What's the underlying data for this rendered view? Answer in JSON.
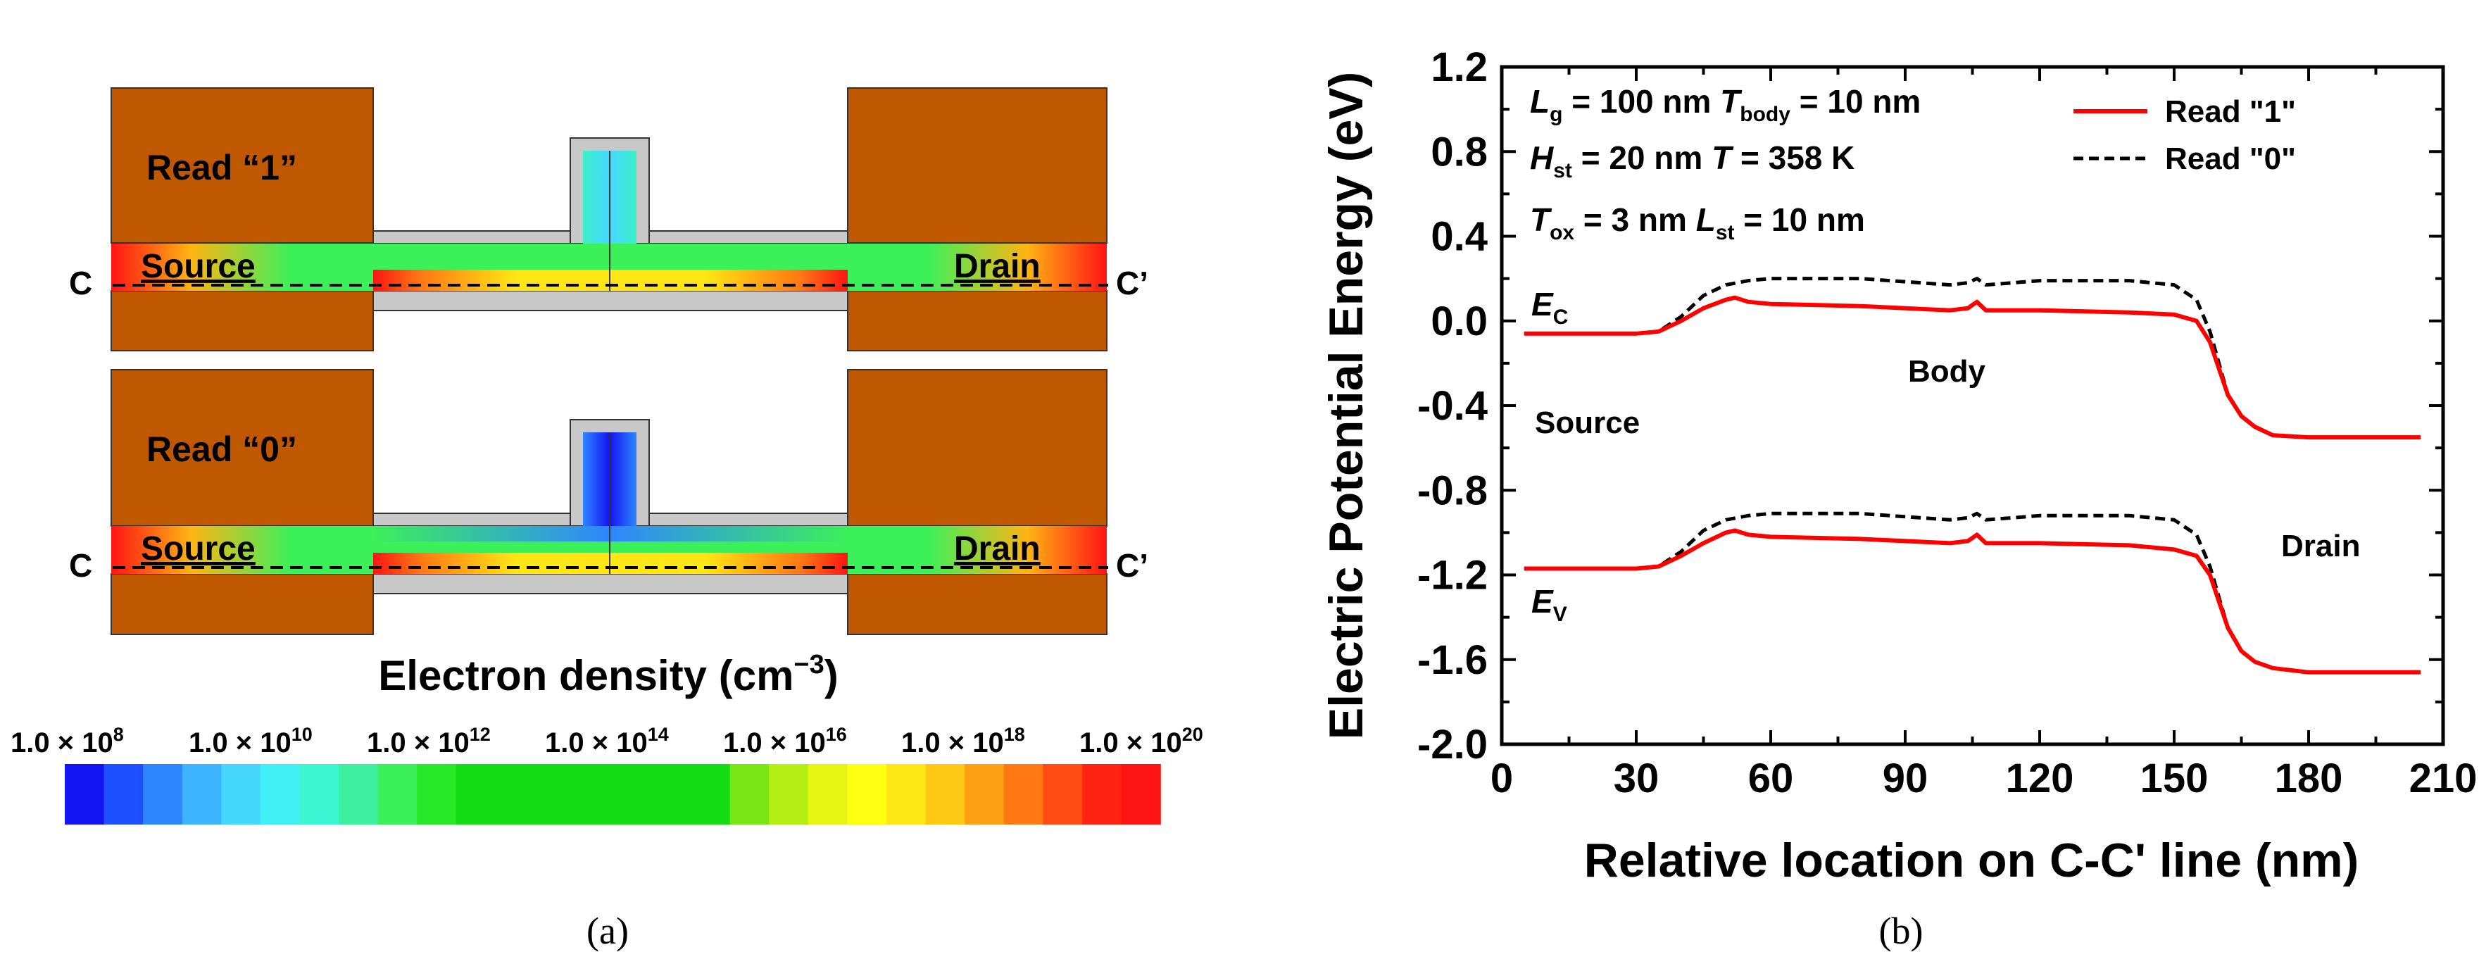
{
  "panel_a": {
    "top": {
      "read_label": "Read “1”",
      "source": "Source",
      "drain": "Drain",
      "c_left": "C",
      "c_right": "C’"
    },
    "bottom": {
      "read_label": "Read “0”",
      "source": "Source",
      "drain": "Drain",
      "c_left": "C",
      "c_right": "C’"
    },
    "colorbar_title": "Electron density (cm",
    "colorbar_title_exp": "−3",
    "colorbar_title_close": ")",
    "colorbar_ticks": [
      {
        "mant": "1.0 × 10",
        "exp": "8"
      },
      {
        "mant": "1.0 × 10",
        "exp": "10"
      },
      {
        "mant": "1.0 × 10",
        "exp": "12"
      },
      {
        "mant": "1.0 × 10",
        "exp": "14"
      },
      {
        "mant": "1.0 × 10",
        "exp": "16"
      },
      {
        "mant": "1.0 × 10",
        "exp": "18"
      },
      {
        "mant": "1.0 × 10",
        "exp": "20"
      }
    ],
    "colorbar_colors": [
      "#1414f0",
      "#1e50ff",
      "#2e86ff",
      "#3cb4ff",
      "#46d7ff",
      "#41f0f5",
      "#3cf5d2",
      "#3cf0a0",
      "#3cf05a",
      "#28e628",
      "#14dc14",
      "#14dc14",
      "#14dc14",
      "#14dc14",
      "#14dc14",
      "#14dc14",
      "#14dc14",
      "#78e614",
      "#b4f014",
      "#e6f514",
      "#ffff14",
      "#ffe614",
      "#ffc814",
      "#ffa014",
      "#ff7814",
      "#ff4b14",
      "#ff2314",
      "#ff1414"
    ],
    "caption": "(a)"
  },
  "panel_b": {
    "caption": "(b)",
    "params": [
      {
        "main": "L",
        "sub": "g",
        "val": " = 100 nm ",
        "main2": "T",
        "sub2": "body",
        "val2": " = 10 nm"
      },
      {
        "main": "H",
        "sub": "st",
        "val": " = 20 nm ",
        "main2": "T",
        "sub2": "",
        "val2": "   = 358 K"
      },
      {
        "main": "T",
        "sub": "ox",
        "val": " = 3 nm ",
        "main2": "L",
        "sub2": "st",
        "val2": " = 10 nm"
      }
    ],
    "region_labels": {
      "source": "Source",
      "body": "Body",
      "drain": "Drain"
    },
    "band_labels": {
      "ec_main": "E",
      "ec_sub": "C",
      "ev_main": "E",
      "ev_sub": "V"
    }
  },
  "chart_data": {
    "type": "line",
    "title": "",
    "xlabel": "Relative location on C-C' line (nm)",
    "ylabel": "Electric Potential Energy (eV)",
    "xlim": [
      0,
      210
    ],
    "ylim": [
      -2.0,
      1.2
    ],
    "xticks": [
      0,
      30,
      60,
      90,
      120,
      150,
      180,
      210
    ],
    "yticks": [
      -2.0,
      -1.6,
      -1.2,
      -0.8,
      -0.4,
      0.0,
      0.4,
      0.8,
      1.2
    ],
    "xtick_labels": [
      "0",
      "30",
      "60",
      "90",
      "120",
      "150",
      "180",
      "210"
    ],
    "ytick_labels": [
      "-2.0",
      "-1.6",
      "-1.2",
      "-0.8",
      "-0.4",
      "0.0",
      "0.4",
      "0.8",
      "1.2"
    ],
    "legend": "top-right",
    "colors": {
      "read1": "#ff0000",
      "read0": "#000000"
    },
    "series": [
      {
        "name": "Read \"1\"",
        "band": "Ec",
        "style": "solid",
        "x": [
          5,
          30,
          35,
          40,
          45,
          50,
          52,
          55,
          60,
          80,
          100,
          104,
          106,
          108,
          120,
          140,
          150,
          155,
          158,
          162,
          165,
          168,
          172,
          180,
          205
        ],
        "y": [
          -0.06,
          -0.06,
          -0.05,
          0.0,
          0.06,
          0.1,
          0.11,
          0.09,
          0.08,
          0.07,
          0.05,
          0.06,
          0.09,
          0.05,
          0.05,
          0.04,
          0.03,
          0.0,
          -0.1,
          -0.35,
          -0.45,
          -0.5,
          -0.54,
          -0.55,
          -0.55
        ]
      },
      {
        "name": "Read \"0\"",
        "band": "Ec",
        "style": "dashed",
        "x": [
          5,
          30,
          35,
          40,
          45,
          50,
          55,
          60,
          80,
          100,
          104,
          106,
          108,
          120,
          140,
          150,
          155,
          158,
          162,
          165,
          168,
          172,
          180,
          205
        ],
        "y": [
          -0.06,
          -0.06,
          -0.05,
          0.02,
          0.12,
          0.17,
          0.19,
          0.2,
          0.2,
          0.17,
          0.18,
          0.2,
          0.17,
          0.19,
          0.19,
          0.17,
          0.1,
          -0.05,
          -0.35,
          -0.45,
          -0.5,
          -0.54,
          -0.55,
          -0.55
        ]
      },
      {
        "name": "Read \"1\"",
        "band": "Ev",
        "style": "solid",
        "x": [
          5,
          30,
          35,
          40,
          45,
          50,
          52,
          55,
          60,
          80,
          100,
          104,
          106,
          108,
          120,
          140,
          150,
          155,
          158,
          162,
          165,
          168,
          172,
          180,
          205
        ],
        "y": [
          -1.17,
          -1.17,
          -1.16,
          -1.11,
          -1.05,
          -1.0,
          -0.99,
          -1.01,
          -1.02,
          -1.03,
          -1.05,
          -1.04,
          -1.01,
          -1.05,
          -1.05,
          -1.06,
          -1.08,
          -1.11,
          -1.2,
          -1.45,
          -1.56,
          -1.61,
          -1.64,
          -1.66,
          -1.66
        ]
      },
      {
        "name": "Read \"0\"",
        "band": "Ev",
        "style": "dashed",
        "x": [
          5,
          30,
          35,
          40,
          45,
          50,
          55,
          60,
          80,
          100,
          104,
          106,
          108,
          120,
          140,
          150,
          155,
          158,
          162,
          165,
          168,
          172,
          180,
          205
        ],
        "y": [
          -1.17,
          -1.17,
          -1.16,
          -1.09,
          -0.99,
          -0.94,
          -0.92,
          -0.91,
          -0.91,
          -0.94,
          -0.93,
          -0.91,
          -0.94,
          -0.92,
          -0.92,
          -0.94,
          -1.01,
          -1.16,
          -1.45,
          -1.56,
          -1.61,
          -1.64,
          -1.66,
          -1.66
        ]
      }
    ],
    "legend_entries": [
      {
        "label": "Read \"1\"",
        "style": "solid",
        "color": "#ff0000"
      },
      {
        "label": "Read \"0\"",
        "style": "dashed",
        "color": "#000000"
      }
    ]
  }
}
